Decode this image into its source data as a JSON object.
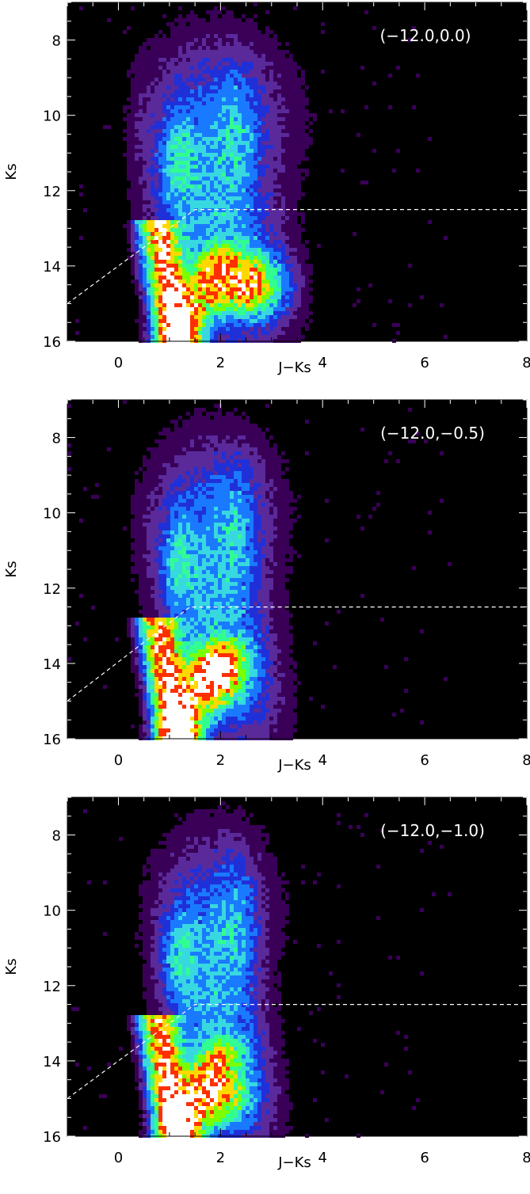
{
  "chart_data": [
    {
      "type": "heatmap",
      "label": "(−12.0,0.0)",
      "xlabel": "J−Ks",
      "ylabel": "Ks",
      "xlim": [
        -1,
        8
      ],
      "ylim": [
        16,
        7
      ],
      "xticks": [
        "0",
        "2",
        "4",
        "6",
        "8"
      ],
      "yticks": [
        "8",
        "10",
        "12",
        "14",
        "16"
      ],
      "colormap": [
        "#000000",
        "#3a0058",
        "#5a2a9a",
        "#2030d8",
        "#1a7aff",
        "#38d8e0",
        "#30ff90",
        "#7aff00",
        "#ffd800",
        "#ff3000",
        "#ffffff"
      ],
      "boundary": [
        [
          -1.0,
          15.0
        ],
        [
          1.5,
          12.5
        ],
        [
          8.0,
          12.5
        ]
      ]
    },
    {
      "type": "heatmap",
      "label": "(−12.0,−0.5)",
      "xlabel": "J−Ks",
      "ylabel": "Ks",
      "xlim": [
        -1,
        8
      ],
      "ylim": [
        16,
        7
      ],
      "xticks": [
        "0",
        "2",
        "4",
        "6",
        "8"
      ],
      "yticks": [
        "8",
        "10",
        "12",
        "14",
        "16"
      ],
      "colormap": [
        "#000000",
        "#3a0058",
        "#5a2a9a",
        "#2030d8",
        "#1a7aff",
        "#38d8e0",
        "#30ff90",
        "#7aff00",
        "#ffd800",
        "#ff3000",
        "#ffffff"
      ],
      "boundary": [
        [
          -1.0,
          15.0
        ],
        [
          1.4,
          12.5
        ],
        [
          8.0,
          12.5
        ]
      ]
    },
    {
      "type": "heatmap",
      "label": "(−12.0,−1.0)",
      "xlabel": "J−Ks",
      "ylabel": "Ks",
      "xlim": [
        -1,
        8
      ],
      "ylim": [
        16,
        7
      ],
      "xticks": [
        "0",
        "2",
        "4",
        "6",
        "8"
      ],
      "yticks": [
        "8",
        "10",
        "12",
        "14",
        "16"
      ],
      "colormap": [
        "#000000",
        "#3a0058",
        "#5a2a9a",
        "#2030d8",
        "#1a7aff",
        "#38d8e0",
        "#30ff90",
        "#7aff00",
        "#ffd800",
        "#ff3000",
        "#ffffff"
      ],
      "boundary": [
        [
          -1.0,
          15.0
        ],
        [
          1.5,
          12.5
        ],
        [
          8.0,
          12.5
        ]
      ]
    }
  ]
}
